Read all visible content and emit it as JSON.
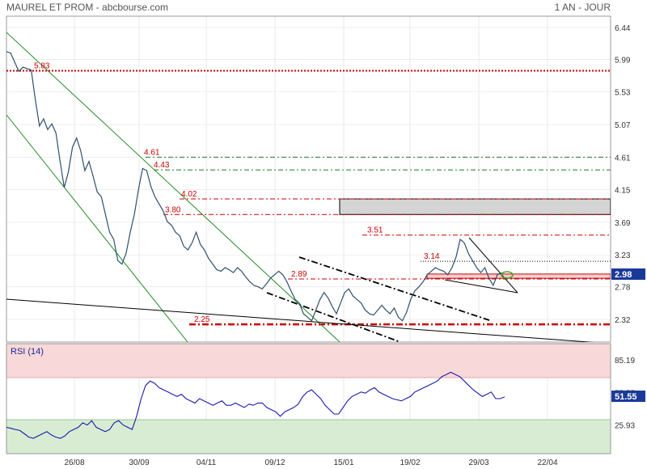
{
  "header": {
    "title": "MAUREL ET PROM - abcbourse.com",
    "period": "1 AN - JOUR"
  },
  "chart_data": [
    {
      "type": "line",
      "name": "price",
      "ylim": [
        2.0,
        6.6
      ],
      "yticks": [
        "6.44",
        "5.99",
        "5.53",
        "5.07",
        "4.61",
        "4.15",
        "3.69",
        "3.23",
        "2.78",
        "2.32"
      ],
      "xticks": [
        "26/08",
        "30/09",
        "04/11",
        "09/12",
        "15/01",
        "19/02",
        "29/03",
        "22/04"
      ],
      "last_value": "2.98",
      "levels": [
        {
          "label": "5.83",
          "value": 5.83
        },
        {
          "label": "4.61",
          "value": 4.61
        },
        {
          "label": "4.43",
          "value": 4.43
        },
        {
          "label": "4.02",
          "value": 4.02
        },
        {
          "label": "3.80",
          "value": 3.8
        },
        {
          "label": "3.51",
          "value": 3.51
        },
        {
          "label": "3.14",
          "value": 3.14
        },
        {
          "label": "2.89",
          "value": 2.89
        },
        {
          "label": "2.25",
          "value": 2.25
        }
      ],
      "zone": {
        "from": 3.8,
        "to": 4.02
      },
      "values": [
        6.1,
        6.08,
        5.95,
        5.82,
        5.88,
        5.86,
        5.84,
        5.42,
        5.05,
        5.15,
        5.0,
        5.08,
        4.95,
        4.55,
        4.18,
        4.4,
        4.75,
        4.88,
        4.7,
        4.42,
        4.55,
        4.34,
        4.12,
        4.05,
        3.8,
        3.55,
        3.45,
        3.15,
        3.1,
        3.25,
        3.55,
        3.8,
        4.15,
        4.45,
        4.42,
        4.2,
        4.05,
        3.95,
        3.85,
        3.7,
        3.65,
        3.55,
        3.5,
        3.35,
        3.3,
        3.4,
        3.55,
        3.38,
        3.3,
        3.18,
        3.1,
        3.02,
        3.0,
        3.05,
        3.02,
        2.98,
        3.05,
        3.0,
        2.92,
        2.85,
        2.8,
        2.78,
        2.75,
        2.82,
        2.9,
        2.95,
        3.0,
        2.95,
        2.85,
        2.72,
        2.6,
        2.55,
        2.4,
        2.35,
        2.3,
        2.45,
        2.6,
        2.7,
        2.62,
        2.5,
        2.4,
        2.55,
        2.7,
        2.75,
        2.65,
        2.6,
        2.55,
        2.45,
        2.4,
        2.38,
        2.45,
        2.52,
        2.45,
        2.4,
        2.48,
        2.35,
        2.3,
        2.42,
        2.6,
        2.72,
        2.78,
        2.85,
        2.95,
        3.0,
        3.05,
        3.02,
        3.0,
        2.95,
        3.05,
        3.2,
        3.45,
        3.4,
        3.25,
        3.15,
        3.05,
        2.98,
        3.05,
        2.9,
        2.8,
        2.95,
        2.98
      ]
    },
    {
      "type": "line",
      "name": "RSI",
      "title": "RSI (14)",
      "ylim": [
        0,
        100
      ],
      "yticks": [
        "85.19",
        "55.55",
        "25.93"
      ],
      "last_value": "51.55",
      "values": [
        24,
        23,
        22,
        21,
        18,
        15,
        14,
        16,
        18,
        20,
        17,
        15,
        14,
        16,
        20,
        22,
        24,
        28,
        26,
        30,
        24,
        22,
        20,
        22,
        28,
        30,
        26,
        24,
        22,
        34,
        50,
        62,
        66,
        64,
        60,
        58,
        56,
        54,
        52,
        54,
        50,
        48,
        46,
        50,
        48,
        46,
        44,
        46,
        48,
        44,
        44,
        46,
        44,
        42,
        45,
        44,
        46,
        46,
        42,
        40,
        38,
        34,
        38,
        40,
        42,
        45,
        52,
        56,
        58,
        54,
        50,
        44,
        40,
        36,
        36,
        42,
        48,
        52,
        54,
        56,
        55,
        58,
        60,
        56,
        54,
        52,
        50,
        49,
        48,
        50,
        52,
        56,
        58,
        60,
        62,
        64,
        66,
        70,
        72,
        74,
        72,
        70,
        66,
        62,
        58,
        55,
        52,
        54,
        56,
        50,
        50,
        51.55
      ]
    }
  ]
}
